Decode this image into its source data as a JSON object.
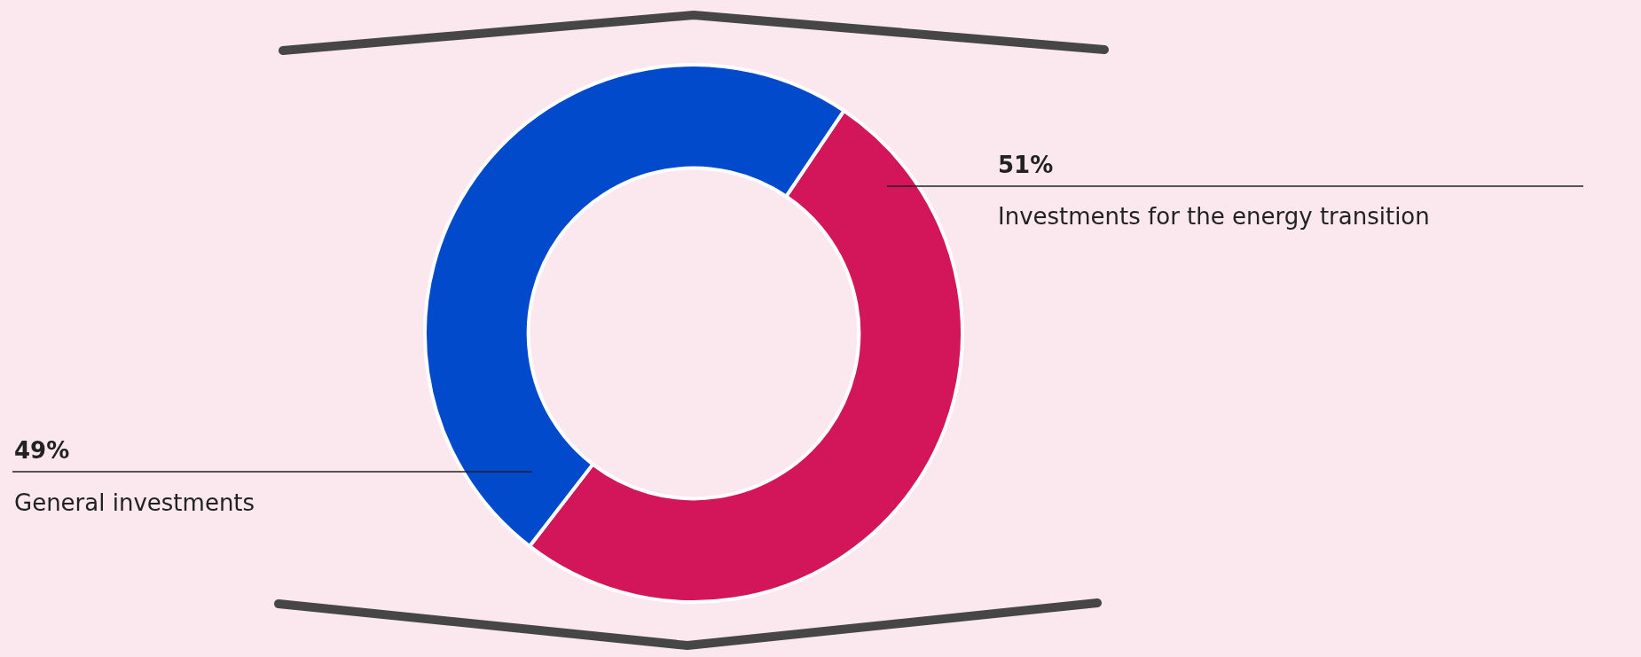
{
  "chart_data": {
    "type": "donut",
    "categories": [
      "Investments for the energy transition",
      "General investments"
    ],
    "values": [
      51,
      49
    ],
    "colors": [
      "#d3165a",
      "#004acb"
    ],
    "value_labels": [
      "51%",
      "49%"
    ]
  }
}
